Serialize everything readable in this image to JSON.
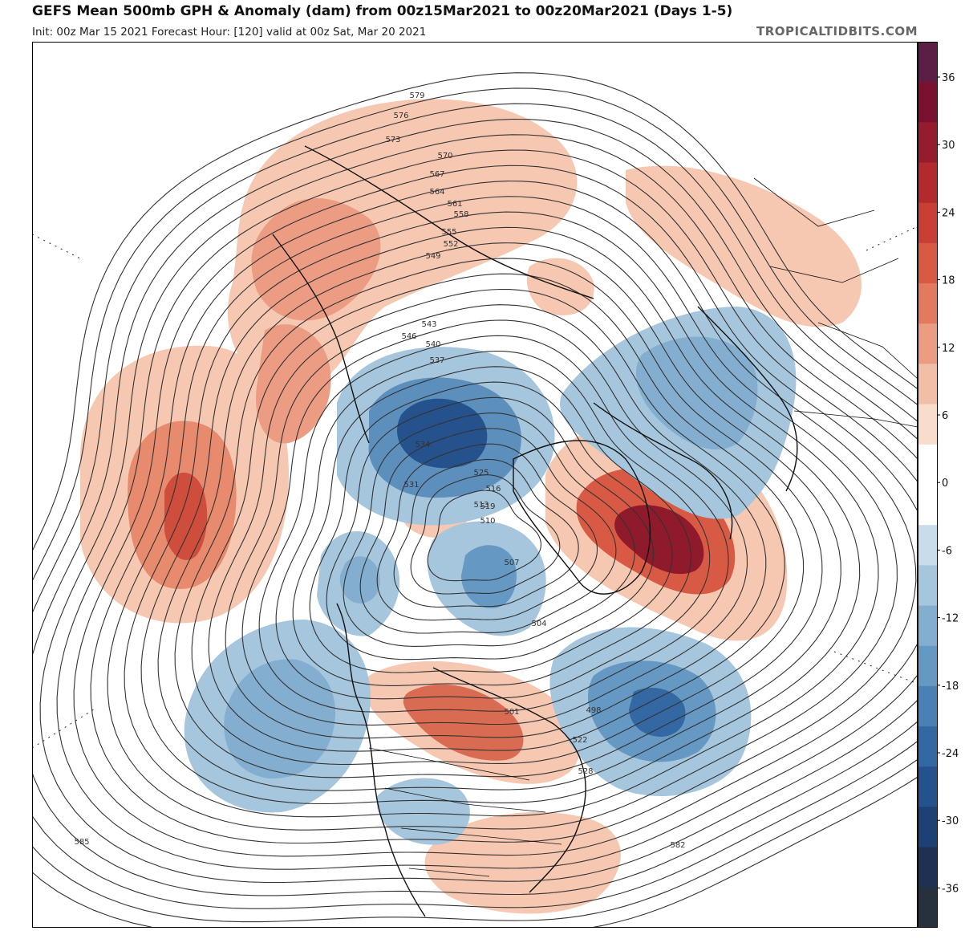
{
  "header": {
    "title": "GEFS Mean 500mb GPH & Anomaly (dam) from 00z15Mar2021 to 00z20Mar2021 (Days 1-5)",
    "subtitle": "Init: 00z Mar 15 2021   Forecast Hour: [120]   valid at 00z Sat, Mar 20 2021",
    "credit": "TROPICALTIDBITS.COM"
  },
  "colorbar": {
    "ticks": [
      "36",
      "30",
      "24",
      "18",
      "12",
      "6",
      "0",
      "-6",
      "-12",
      "-18",
      "-24",
      "-30",
      "-36"
    ],
    "colors": [
      "#5b1f45",
      "#7a1130",
      "#951c2d",
      "#b22a2e",
      "#c93f35",
      "#d85a44",
      "#e27a5f",
      "#ec9c82",
      "#f3bea7",
      "#f9ddcc",
      "#ffffff",
      "#ffffff",
      "#c9dcea",
      "#a6c6dd",
      "#84aecf",
      "#6598c2",
      "#4a80b4",
      "#3468a2",
      "#25528c",
      "#1d4075",
      "#1e3153",
      "#27303d"
    ],
    "color_meaning": "anomaly (dam), red positive, blue negative"
  },
  "chart_data": {
    "type": "heatmap",
    "variable": "500mb geopotential height with anomaly shading",
    "contour_labels": [
      "579",
      "576",
      "573",
      "570",
      "567",
      "564",
      "561",
      "558",
      "555",
      "552",
      "549",
      "546",
      "543",
      "540",
      "537",
      "534",
      "531",
      "525",
      "519",
      "516",
      "513",
      "510",
      "507",
      "504",
      "501",
      "498",
      "522",
      "528",
      "585",
      "582"
    ],
    "anomaly_features": [
      {
        "sign": "negative",
        "region": "Arctic Siberia",
        "approx_dam": -24
      },
      {
        "sign": "negative",
        "region": "Western Russia / Scandinavia",
        "approx_dam": -15
      },
      {
        "sign": "negative",
        "region": "Canadian Arctic",
        "approx_dam": -15
      },
      {
        "sign": "negative",
        "region": "North Pacific / Gulf of Alaska",
        "approx_dam": -14
      },
      {
        "sign": "negative",
        "region": "North Atlantic",
        "approx_dam": -18
      },
      {
        "sign": "positive",
        "region": "Greenland Sea / Iceland",
        "approx_dam": 33
      },
      {
        "sign": "positive",
        "region": "North Pacific (Aleutians south)",
        "approx_dam": 24
      },
      {
        "sign": "positive",
        "region": "Central Canada / Great Lakes",
        "approx_dam": 18
      },
      {
        "sign": "positive",
        "region": "Kamchatka / Sea of Okhotsk",
        "approx_dam": 15
      },
      {
        "sign": "positive",
        "region": "Central Asia / Middle East",
        "approx_dam": 9
      },
      {
        "sign": "positive",
        "region": "Gulf of Mexico / Caribbean",
        "approx_dam": 7
      }
    ]
  }
}
